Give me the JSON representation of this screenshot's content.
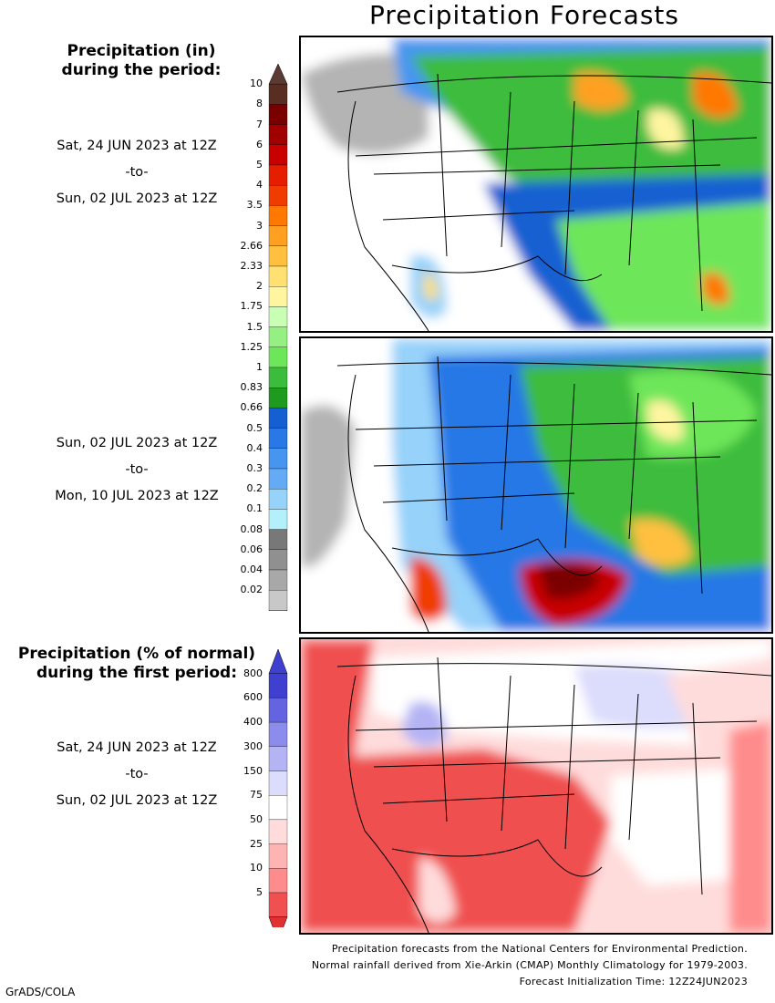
{
  "title": "Precipitation Forecasts",
  "panel_amount": {
    "heading_line1": "Precipitation (in)",
    "heading_line2": "during the period:",
    "colorbar_labels": [
      "10",
      "8",
      "7",
      "6",
      "5",
      "4",
      "3.5",
      "3",
      "2.66",
      "2.33",
      "2",
      "1.75",
      "1.5",
      "1.25",
      "1",
      "0.83",
      "0.66",
      "0.5",
      "0.4",
      "0.3",
      "0.2",
      "0.1",
      "0.08",
      "0.06",
      "0.04",
      "0.02"
    ],
    "colorbar_colors": [
      "#5a2d22",
      "#7a0000",
      "#a00000",
      "#c80000",
      "#e61e00",
      "#f03c00",
      "#ff7800",
      "#ffa020",
      "#ffc040",
      "#ffe070",
      "#fff5a0",
      "#c8ffb4",
      "#96ef82",
      "#6ee65a",
      "#3cbc3c",
      "#1e9b1e",
      "#1460d2",
      "#2878e6",
      "#4696f0",
      "#64aaf5",
      "#96d2fa",
      "#b4f0fa",
      "#787878",
      "#909090",
      "#a8a8a8",
      "#c8c8c8"
    ],
    "period1": {
      "start": "Sat, 24 JUN 2023 at 12Z",
      "sep": "-to-",
      "end": "Sun, 02 JUL 2023 at 12Z"
    },
    "period2": {
      "start": "Sun, 02 JUL 2023 at 12Z",
      "sep": "-to-",
      "end": "Mon, 10 JUL 2023 at 12Z"
    }
  },
  "panel_percent": {
    "heading_line1": "Precipitation (% of normal)",
    "heading_line2": "during the first period:",
    "colorbar_labels": [
      "800",
      "600",
      "400",
      "300",
      "150",
      "75",
      "50",
      "25",
      "10",
      "5"
    ],
    "colorbar_colors": [
      "#4040d0",
      "#6464e0",
      "#8c8cec",
      "#b4b4f4",
      "#dcdcfc",
      "#ffffff",
      "#ffdcdc",
      "#ffb4b4",
      "#ff8c8c",
      "#f05050"
    ],
    "period": {
      "start": "Sat, 24 JUN 2023 at 12Z",
      "sep": "-to-",
      "end": "Sun, 02 JUL 2023 at 12Z"
    }
  },
  "footer": {
    "line1": "Precipitation forecasts from the National Centers for Environmental Prediction.",
    "line2": "Normal rainfall derived from Xie-Arkin (CMAP) Monthly Climatology for 1979-2003.",
    "line3": "Forecast Initialization Time: 12Z24JUN2023"
  },
  "credit": "GrADS/COLA"
}
